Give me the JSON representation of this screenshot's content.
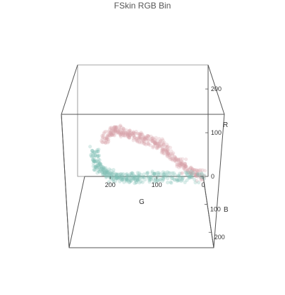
{
  "chart_data": {
    "type": "scatter",
    "projection": "3d",
    "title": "FSkin RGB Bin",
    "axes": {
      "R": {
        "label": "R",
        "ticks": [
          0,
          100,
          200
        ],
        "range": [
          0,
          255
        ]
      },
      "G": {
        "label": "G",
        "ticks": [
          0,
          100,
          200
        ],
        "range": [
          0,
          255
        ]
      },
      "B": {
        "label": "B",
        "ticks": [
          0,
          100,
          200
        ],
        "range": [
          0,
          255
        ]
      }
    },
    "series": [
      {
        "color": "#d7a3aa",
        "points_path": [
          [
            0,
            0,
            0
          ],
          [
            40,
            40,
            35
          ],
          [
            80,
            70,
            60
          ],
          [
            130,
            100,
            90
          ],
          [
            170,
            140,
            130
          ],
          [
            200,
            175,
            160
          ],
          [
            225,
            205,
            185
          ],
          [
            210,
            235,
            200
          ]
        ]
      },
      {
        "color": "#7fbfb5",
        "points_path": [
          [
            0,
            0,
            0
          ],
          [
            30,
            80,
            50
          ],
          [
            55,
            140,
            90
          ],
          [
            85,
            180,
            140
          ],
          [
            110,
            215,
            170
          ],
          [
            150,
            245,
            200
          ],
          [
            210,
            255,
            230
          ]
        ]
      }
    ]
  }
}
